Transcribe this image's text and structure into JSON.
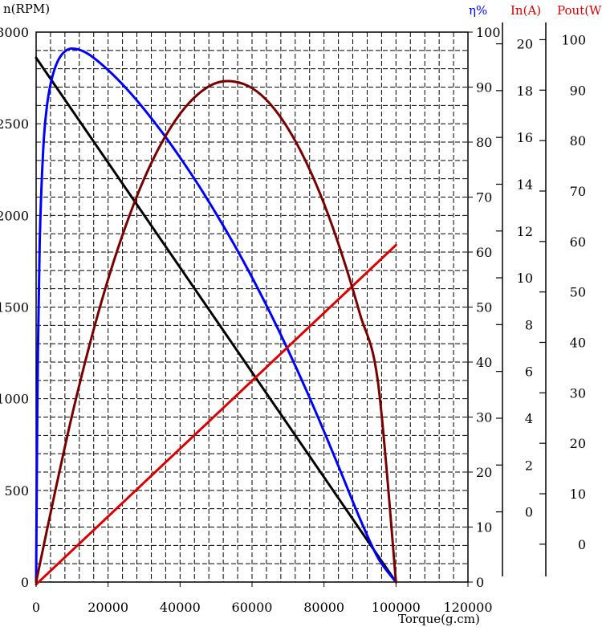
{
  "chart_data": {
    "type": "line",
    "xlabel": "Torque(g.cm)",
    "x_ticks": [
      "0",
      "20000",
      "40000",
      "60000",
      "80000",
      "100000",
      "120000"
    ],
    "xlim": [
      0,
      120000
    ],
    "grid": true,
    "axes": [
      {
        "id": "rpm",
        "label": "n(RPM)",
        "color": "#000000",
        "range": [
          0,
          3000
        ],
        "ticks": [
          "0",
          "500",
          "1000",
          "1500",
          "2000",
          "2500",
          "3000"
        ]
      },
      {
        "id": "eff",
        "label": "η%",
        "color": "#0000ff",
        "range": [
          0,
          100
        ],
        "ticks": [
          "0",
          "10",
          "20",
          "30",
          "40",
          "50",
          "60",
          "70",
          "80",
          "90",
          "100"
        ]
      },
      {
        "id": "cur",
        "label": "In(A)",
        "color": "#dd0000",
        "range": [
          -3,
          20.5
        ],
        "ticks": [
          "0",
          "2",
          "4",
          "6",
          "8",
          "10",
          "12",
          "14",
          "16",
          "18",
          "20"
        ]
      },
      {
        "id": "pow",
        "label": "Pout(W)",
        "color": "#dd0000",
        "range": [
          -7.5,
          101.5
        ],
        "ticks": [
          "0",
          "10",
          "20",
          "30",
          "40",
          "50",
          "60",
          "70",
          "80",
          "90",
          "100"
        ]
      }
    ],
    "series": [
      {
        "axis": "rpm",
        "color": "#000000",
        "x": [
          0,
          100000
        ],
        "y": [
          2860,
          0
        ]
      },
      {
        "axis": "eff",
        "color": "#0000ff",
        "x": [
          0,
          200,
          500,
          1000,
          2000,
          3000,
          4000,
          5000,
          6000,
          7000,
          8000,
          9000,
          10000,
          12000,
          15000,
          20000,
          25000,
          30000,
          35000,
          40000,
          45000,
          50000,
          55000,
          60000,
          65000,
          70000,
          75000,
          80000,
          85000,
          90000,
          95000,
          100000
        ],
        "y": [
          0,
          20,
          42,
          62,
          79,
          86.5,
          90.5,
          93,
          94.7,
          95.8,
          96.5,
          96.9,
          97.0,
          96.8,
          95.8,
          93.1,
          89.8,
          86.0,
          81.8,
          77.2,
          72.3,
          67.0,
          61.4,
          55.4,
          49.0,
          42.2,
          35.0,
          27.4,
          19.5,
          11.5,
          4.4,
          0
        ]
      },
      {
        "axis": "cur",
        "color": "#dd0000",
        "x": [
          0,
          100000
        ],
        "y": [
          -3.1,
          11.4
        ]
      },
      {
        "axis": "pow",
        "color": "#7a0000",
        "x": [
          0,
          5000,
          10000,
          15000,
          20000,
          25000,
          30000,
          35000,
          40000,
          45000,
          50000,
          55000,
          60000,
          65000,
          70000,
          75000,
          80000,
          85000,
          90000,
          95000,
          100000
        ],
        "y": [
          -7.5,
          9.5,
          25.6,
          39.9,
          52.5,
          63.3,
          72.4,
          79.7,
          85.3,
          89.2,
          91.4,
          91.7,
          90.4,
          87.3,
          82.4,
          75.8,
          67.5,
          57.4,
          45.6,
          32.1,
          -7.5
        ]
      }
    ]
  }
}
